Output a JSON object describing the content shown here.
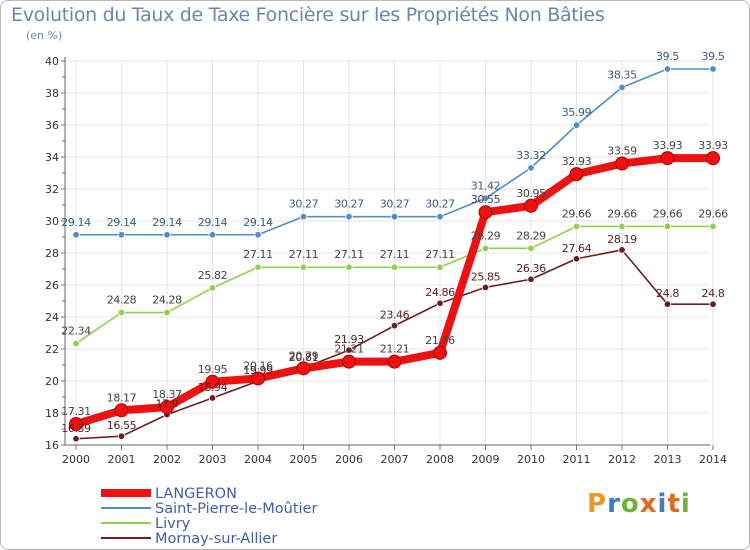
{
  "title": "Evolution du Taux de Taxe Foncière sur les Propriétés Non Bâties",
  "unit_label": "(en %)",
  "brand": {
    "text": "Proxiti",
    "letters": [
      "P",
      "r",
      "o",
      "x",
      "i",
      "t",
      "i"
    ],
    "colors": [
      "#e89a28",
      "#3f7fc0",
      "#6cb23c",
      "#e06a1e",
      "#3f7fc0",
      "#e06a1e",
      "#6cb23c"
    ]
  },
  "chart_data": {
    "type": "line",
    "title": "Evolution du Taux de Taxe Foncière sur les Propriétés Non Bâties",
    "ylabel": "(en %)",
    "xlabel": "",
    "x": [
      2000,
      2001,
      2002,
      2003,
      2004,
      2005,
      2006,
      2007,
      2008,
      2009,
      2010,
      2011,
      2012,
      2013,
      2014
    ],
    "x_tick_labels": [
      "2000",
      "2001",
      "2002",
      "2003",
      "2004",
      "2005",
      "2006",
      "2007",
      "2008",
      "2009",
      "2010",
      "2011",
      "2012",
      "2013",
      "2014"
    ],
    "ylim": [
      16,
      40
    ],
    "y_ticks": [
      16,
      18,
      20,
      22,
      24,
      26,
      28,
      30,
      32,
      34,
      36,
      38,
      40
    ],
    "y_tick_labels": [
      "16",
      "18",
      "20",
      "22",
      "24",
      "26",
      "28",
      "30",
      "32",
      "34",
      "36",
      "38",
      "40"
    ],
    "grid": true,
    "legend_position": "bottom-left",
    "series": [
      {
        "name": "Saint-Pierre-le-Moûtier",
        "color": "#4f8ec9",
        "values": [
          29.14,
          29.14,
          29.14,
          29.14,
          29.14,
          30.27,
          30.27,
          30.27,
          30.27,
          31.42,
          33.32,
          35.99,
          38.35,
          39.5,
          39.5
        ],
        "labels": [
          "29.14",
          "29.14",
          "29.14",
          "29.14",
          "29.14",
          "30.27",
          "30.27",
          "30.27",
          "30.27",
          "31.42",
          "33.32",
          "35.99",
          "38.35",
          "39.5",
          "39.5"
        ]
      },
      {
        "name": "Livry",
        "color": "#8ed24c",
        "values": [
          22.34,
          24.28,
          24.28,
          25.82,
          27.11,
          27.11,
          27.11,
          27.11,
          27.11,
          28.29,
          28.29,
          29.66,
          29.66,
          29.66,
          29.66
        ],
        "labels": [
          "22.34",
          "24.28",
          "24.28",
          "25.82",
          "27.11",
          "27.11",
          "27.11",
          "27.11",
          "27.11",
          "28.29",
          "28.29",
          "29.66",
          "29.66",
          "29.66",
          "29.66"
        ]
      },
      {
        "name": "Mornay-sur-Allier",
        "color": "#6e1e1e",
        "values": [
          16.39,
          16.55,
          17.9,
          18.94,
          19.99,
          20.81,
          21.93,
          23.46,
          24.86,
          25.85,
          26.36,
          27.64,
          28.19,
          24.8,
          24.8
        ],
        "labels": [
          "16.39",
          "16.55",
          "17.9",
          "18.94",
          "19.99",
          "20.81",
          "21.93",
          "23.46",
          "24.86",
          "25.85",
          "26.36",
          "27.64",
          "28.19",
          "24.8",
          "24.8"
        ]
      },
      {
        "name": "LANGERON",
        "color": "#ee1111",
        "values": [
          17.31,
          18.17,
          18.37,
          19.95,
          20.16,
          20.79,
          21.21,
          21.21,
          21.76,
          30.55,
          30.95,
          32.93,
          33.59,
          33.93,
          33.93
        ],
        "labels": [
          "17.31",
          "18.17",
          "18.37",
          "19.95",
          "20.16",
          "20.79",
          "21.21",
          "21.21",
          "21.76",
          "30.55",
          "30.95",
          "32.93",
          "33.59",
          "33.93",
          "33.93"
        ]
      }
    ]
  },
  "legend": {
    "items": [
      {
        "name": "LANGERON",
        "color": "#ee1111"
      },
      {
        "name": "Saint-Pierre-le-Moûtier",
        "color": "#4f8ec9"
      },
      {
        "name": "Livry",
        "color": "#8ed24c"
      },
      {
        "name": "Mornay-sur-Allier",
        "color": "#6e1e1e"
      }
    ]
  }
}
